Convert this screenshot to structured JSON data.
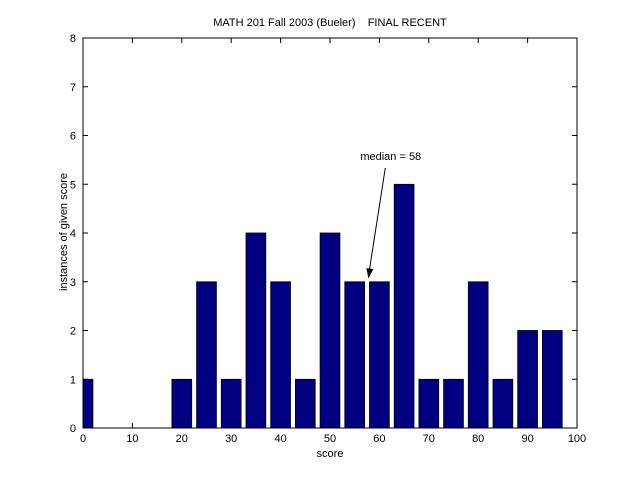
{
  "chart_data": {
    "type": "bar",
    "title": "MATH 201 Fall 2003 (Bueler)    FINAL RECENT",
    "xlabel": "score",
    "ylabel": "instances of given score",
    "xlim": [
      0,
      100
    ],
    "ylim": [
      0,
      8
    ],
    "xticks": [
      "0",
      "10",
      "20",
      "30",
      "40",
      "50",
      "60",
      "70",
      "80",
      "90",
      "100"
    ],
    "yticks": [
      "0",
      "1",
      "2",
      "3",
      "4",
      "5",
      "6",
      "7",
      "8"
    ],
    "grid": false,
    "bar_color": "#000080",
    "bar_width": 4,
    "bars": [
      {
        "x": 0,
        "value": 1
      },
      {
        "x": 5,
        "value": 0
      },
      {
        "x": 10,
        "value": 0
      },
      {
        "x": 15,
        "value": 0
      },
      {
        "x": 20,
        "value": 1
      },
      {
        "x": 25,
        "value": 3
      },
      {
        "x": 30,
        "value": 1
      },
      {
        "x": 35,
        "value": 4
      },
      {
        "x": 40,
        "value": 3
      },
      {
        "x": 45,
        "value": 1
      },
      {
        "x": 50,
        "value": 4
      },
      {
        "x": 55,
        "value": 3
      },
      {
        "x": 60,
        "value": 3
      },
      {
        "x": 65,
        "value": 5
      },
      {
        "x": 70,
        "value": 1
      },
      {
        "x": 75,
        "value": 1
      },
      {
        "x": 80,
        "value": 3
      },
      {
        "x": 85,
        "value": 1
      },
      {
        "x": 90,
        "value": 2
      },
      {
        "x": 95,
        "value": 2
      }
    ],
    "annotation": {
      "text": "median = 58",
      "arrow_points_to_x": 58,
      "arrow_points_to_y": 3
    }
  }
}
